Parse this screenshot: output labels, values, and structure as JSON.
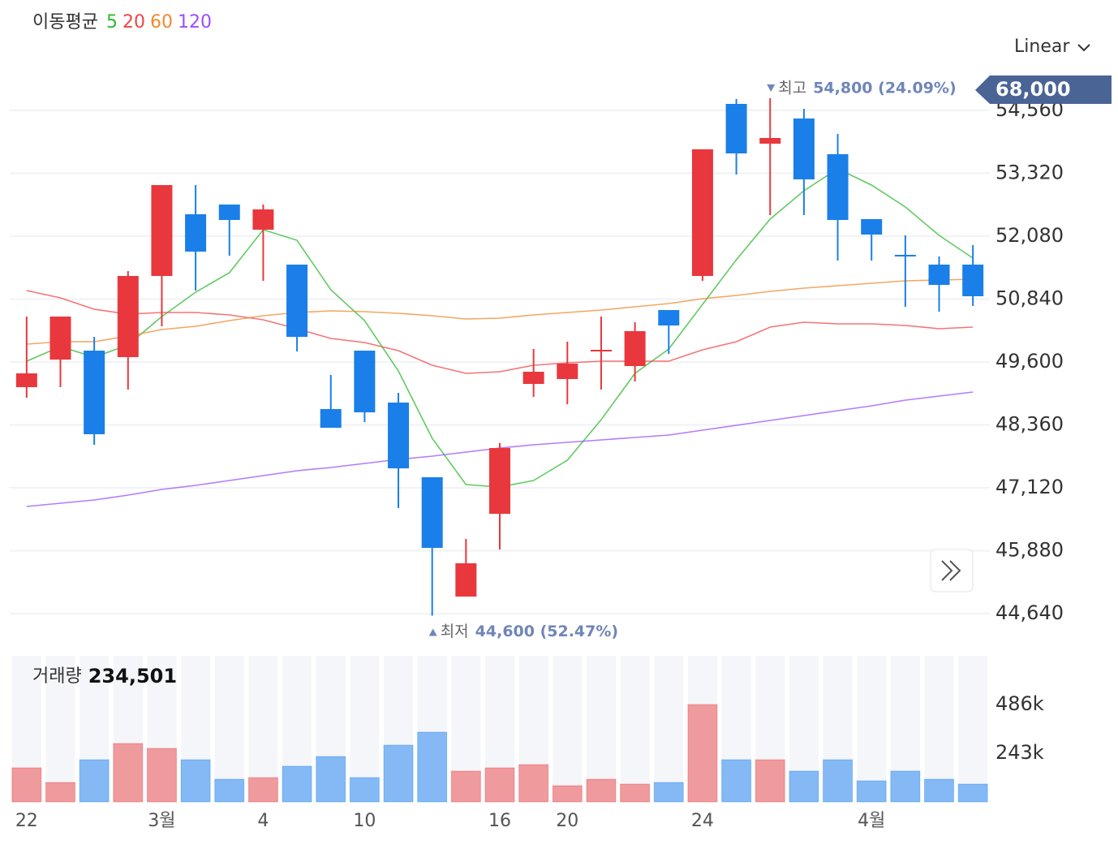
{
  "chart_data": {
    "type": "candlestick",
    "legend_title": "이동평균",
    "scale_label": "Linear",
    "price_tag": "68,000",
    "high_note": {
      "label": "최고",
      "text": "54,800 (24.09%)"
    },
    "low_note": {
      "label": "최저",
      "text": "44,600 (52.47%)"
    },
    "categories": [
      "22",
      null,
      null,
      null,
      "3월",
      null,
      null,
      "4",
      null,
      null,
      "10",
      null,
      null,
      null,
      "16",
      null,
      "20",
      null,
      null,
      null,
      "24",
      null,
      null,
      null,
      null,
      "4월",
      null,
      null,
      null
    ],
    "open": [
      49104,
      49648,
      49824,
      49696,
      51296,
      52512,
      52704,
      52208,
      51520,
      48672,
      49824,
      48800,
      47328,
      44976,
      46608,
      49168,
      49264,
      49808,
      49520,
      50624,
      51296,
      54688,
      53904,
      54400,
      53696,
      52416,
      51712,
      51520,
      51520
    ],
    "high": [
      50496,
      50496,
      50096,
      51392,
      53088,
      53088,
      52704,
      52704,
      51520,
      49344,
      49824,
      48992,
      47328,
      46112,
      48000,
      49856,
      50000,
      50496,
      50384,
      50624,
      53792,
      54784,
      54800,
      54592,
      54096,
      52416,
      52096,
      51680,
      51904
    ],
    "low": [
      48896,
      49104,
      47968,
      49056,
      50304,
      51008,
      51696,
      51200,
      49808,
      48304,
      48416,
      46720,
      44600,
      44976,
      45904,
      48912,
      48768,
      49056,
      49216,
      49760,
      51200,
      53296,
      52496,
      52496,
      51600,
      51600,
      50688,
      50592,
      50704
    ],
    "close": [
      49376,
      50496,
      48176,
      51296,
      53088,
      51776,
      52400,
      52608,
      50096,
      48304,
      48608,
      47504,
      45936,
      45632,
      47904,
      49408,
      49568,
      49840,
      50208,
      50320,
      53792,
      53712,
      54016,
      53200,
      52400,
      52112,
      51680,
      51120,
      50896
    ],
    "up_color": "#e8383d",
    "down_color": "#1a7fe8",
    "series": [
      {
        "name": "5",
        "color": "#2eb82e",
        "values": [
          49616,
          49904,
          49696,
          49936,
          50496,
          50976,
          51360,
          52208,
          52000,
          51024,
          50416,
          49424,
          48096,
          47184,
          47136,
          47264,
          47664,
          48464,
          49376,
          49856,
          50736,
          51616,
          52416,
          52976,
          53408,
          53088,
          52656,
          52096,
          51648
        ]
      },
      {
        "name": "20",
        "color": "#f0454a",
        "values": [
          51008,
          50864,
          50640,
          50544,
          50576,
          50576,
          50528,
          50432,
          50256,
          50064,
          49984,
          49824,
          49536,
          49376,
          49408,
          49536,
          49584,
          49616,
          49616,
          49616,
          49840,
          50000,
          50288,
          50384,
          50352,
          50352,
          50320,
          50256,
          50288
        ]
      },
      {
        "name": "60",
        "color": "#ef8a2d",
        "values": [
          49952,
          50000,
          50000,
          50112,
          50240,
          50304,
          50416,
          50512,
          50576,
          50608,
          50592,
          50560,
          50512,
          50448,
          50464,
          50528,
          50576,
          50624,
          50688,
          50752,
          50848,
          50912,
          50992,
          51056,
          51104,
          51152,
          51200,
          51216,
          51232
        ]
      },
      {
        "name": "120",
        "color": "#9b4dff",
        "values": [
          46752,
          46816,
          46880,
          46976,
          47088,
          47168,
          47264,
          47360,
          47456,
          47520,
          47600,
          47680,
          47744,
          47824,
          47904,
          47968,
          48016,
          48064,
          48112,
          48160,
          48256,
          48352,
          48448,
          48544,
          48640,
          48736,
          48848,
          48928,
          49008
        ]
      }
    ],
    "ylim": [
      44000,
      55200
    ],
    "yticks": [
      {
        "value": 54560,
        "label": "54,560"
      },
      {
        "value": 53320,
        "label": "53,320"
      },
      {
        "value": 52080,
        "label": "52,080"
      },
      {
        "value": 50840,
        "label": "50,840"
      },
      {
        "value": 49600,
        "label": "49,600"
      },
      {
        "value": 48360,
        "label": "48,360"
      },
      {
        "value": 47120,
        "label": "47,120"
      },
      {
        "value": 45880,
        "label": "45,880"
      },
      {
        "value": 44640,
        "label": "44,640"
      }
    ],
    "grid": true,
    "volume": {
      "title": "거래량",
      "current": "234,501",
      "values": [
        170100,
        97200,
        210600,
        291600,
        267300,
        210600,
        113400,
        121500,
        178200,
        226800,
        121500,
        283500,
        348300,
        153900,
        170100,
        186300,
        81000,
        113400,
        89100,
        97200,
        486000,
        210600,
        210600,
        153900,
        210600,
        105300,
        153900,
        113400,
        89100
      ],
      "up_color": "#ef9a9d",
      "down_color": "#84b9f5",
      "ylim": [
        0,
        729000
      ],
      "yticks": [
        {
          "value": 486000,
          "label": "486k"
        },
        {
          "value": 243000,
          "label": "243k"
        }
      ]
    }
  }
}
